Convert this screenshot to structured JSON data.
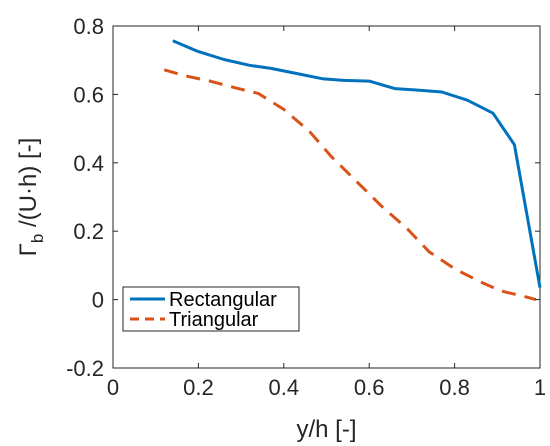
{
  "chart_data": {
    "type": "line",
    "xlabel": "y/h [-]",
    "ylabel": {
      "symbol": "Γ",
      "subscript": "b",
      "rest": " /(U·h) [-]"
    },
    "xlim": [
      0,
      1
    ],
    "ylim": [
      -0.2,
      0.8
    ],
    "xticks": [
      0,
      0.2,
      0.4,
      0.6,
      0.8,
      1
    ],
    "xtick_labels": [
      "0",
      "0.2",
      "0.4",
      "0.6",
      "0.8",
      "1"
    ],
    "yticks": [
      -0.2,
      0,
      0.2,
      0.4,
      0.6,
      0.8
    ],
    "ytick_labels": [
      "-0.2",
      "0",
      "0.2",
      "0.4",
      "0.6",
      "0.8"
    ],
    "grid": false,
    "legend_position": "bottom-left",
    "series": [
      {
        "name": "Rectangular",
        "color": "#0072BD",
        "dash": "solid",
        "x": [
          0.14,
          0.2,
          0.26,
          0.32,
          0.37,
          0.43,
          0.49,
          0.54,
          0.6,
          0.66,
          0.71,
          0.77,
          0.83,
          0.89,
          0.94,
          1.0
        ],
        "y": [
          0.757,
          0.725,
          0.702,
          0.685,
          0.676,
          0.661,
          0.646,
          0.641,
          0.639,
          0.617,
          0.613,
          0.607,
          0.583,
          0.545,
          0.453,
          0.035
        ]
      },
      {
        "name": "Triangular",
        "color": "#D95319",
        "dash": "dashed",
        "x": [
          0.12,
          0.17,
          0.23,
          0.29,
          0.34,
          0.4,
          0.46,
          0.51,
          0.57,
          0.63,
          0.69,
          0.74,
          0.8,
          0.86,
          0.91,
          0.97,
          0.99
        ],
        "y": [
          0.672,
          0.654,
          0.638,
          0.618,
          0.603,
          0.556,
          0.492,
          0.42,
          0.346,
          0.272,
          0.206,
          0.14,
          0.09,
          0.052,
          0.025,
          0.007,
          0.0
        ]
      }
    ]
  }
}
